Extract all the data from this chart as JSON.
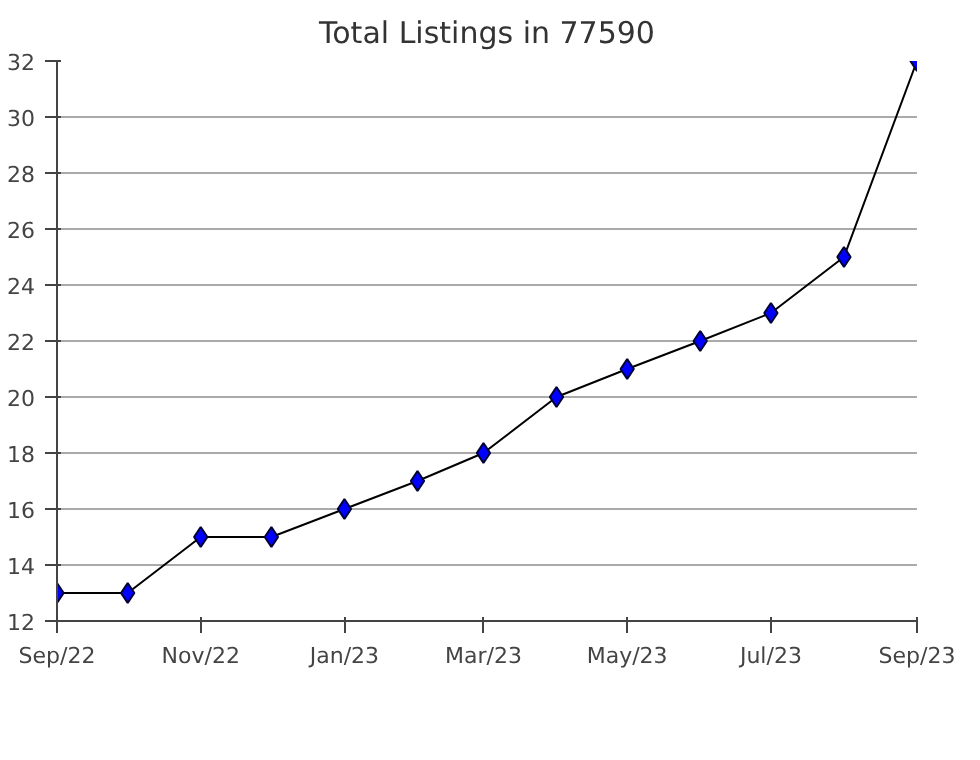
{
  "chart_data": {
    "type": "line",
    "title": "Total Listings in 77590",
    "x": [
      "2022-09",
      "2022-10",
      "2022-11",
      "2022-12",
      "2023-01",
      "2023-02",
      "2023-03",
      "2023-04",
      "2023-05",
      "2023-06",
      "2023-07",
      "2023-08",
      "2023-09"
    ],
    "series": [
      {
        "color": "#0000ff",
        "values": [
          13,
          13,
          15,
          15,
          16,
          17,
          18,
          20,
          21,
          22,
          23,
          25,
          32
        ]
      }
    ],
    "xlim": [
      "2022-09",
      "2023-09"
    ],
    "xticks": [
      {
        "value": "2022-09",
        "label": "Sep/22"
      },
      {
        "value": "2022-11",
        "label": "Nov/22"
      },
      {
        "value": "2023-01",
        "label": "Jan/23"
      },
      {
        "value": "2023-03",
        "label": "Mar/23"
      },
      {
        "value": "2023-05",
        "label": "May/23"
      },
      {
        "value": "2023-07",
        "label": "Jul/23"
      },
      {
        "value": "2023-09",
        "label": "Sep/23"
      }
    ],
    "ylim": [
      12,
      32
    ],
    "yticks": [
      12,
      14,
      16,
      18,
      20,
      22,
      24,
      26,
      28,
      30,
      32
    ],
    "grid": "y",
    "marker": "diamond",
    "line_style": "solid"
  }
}
